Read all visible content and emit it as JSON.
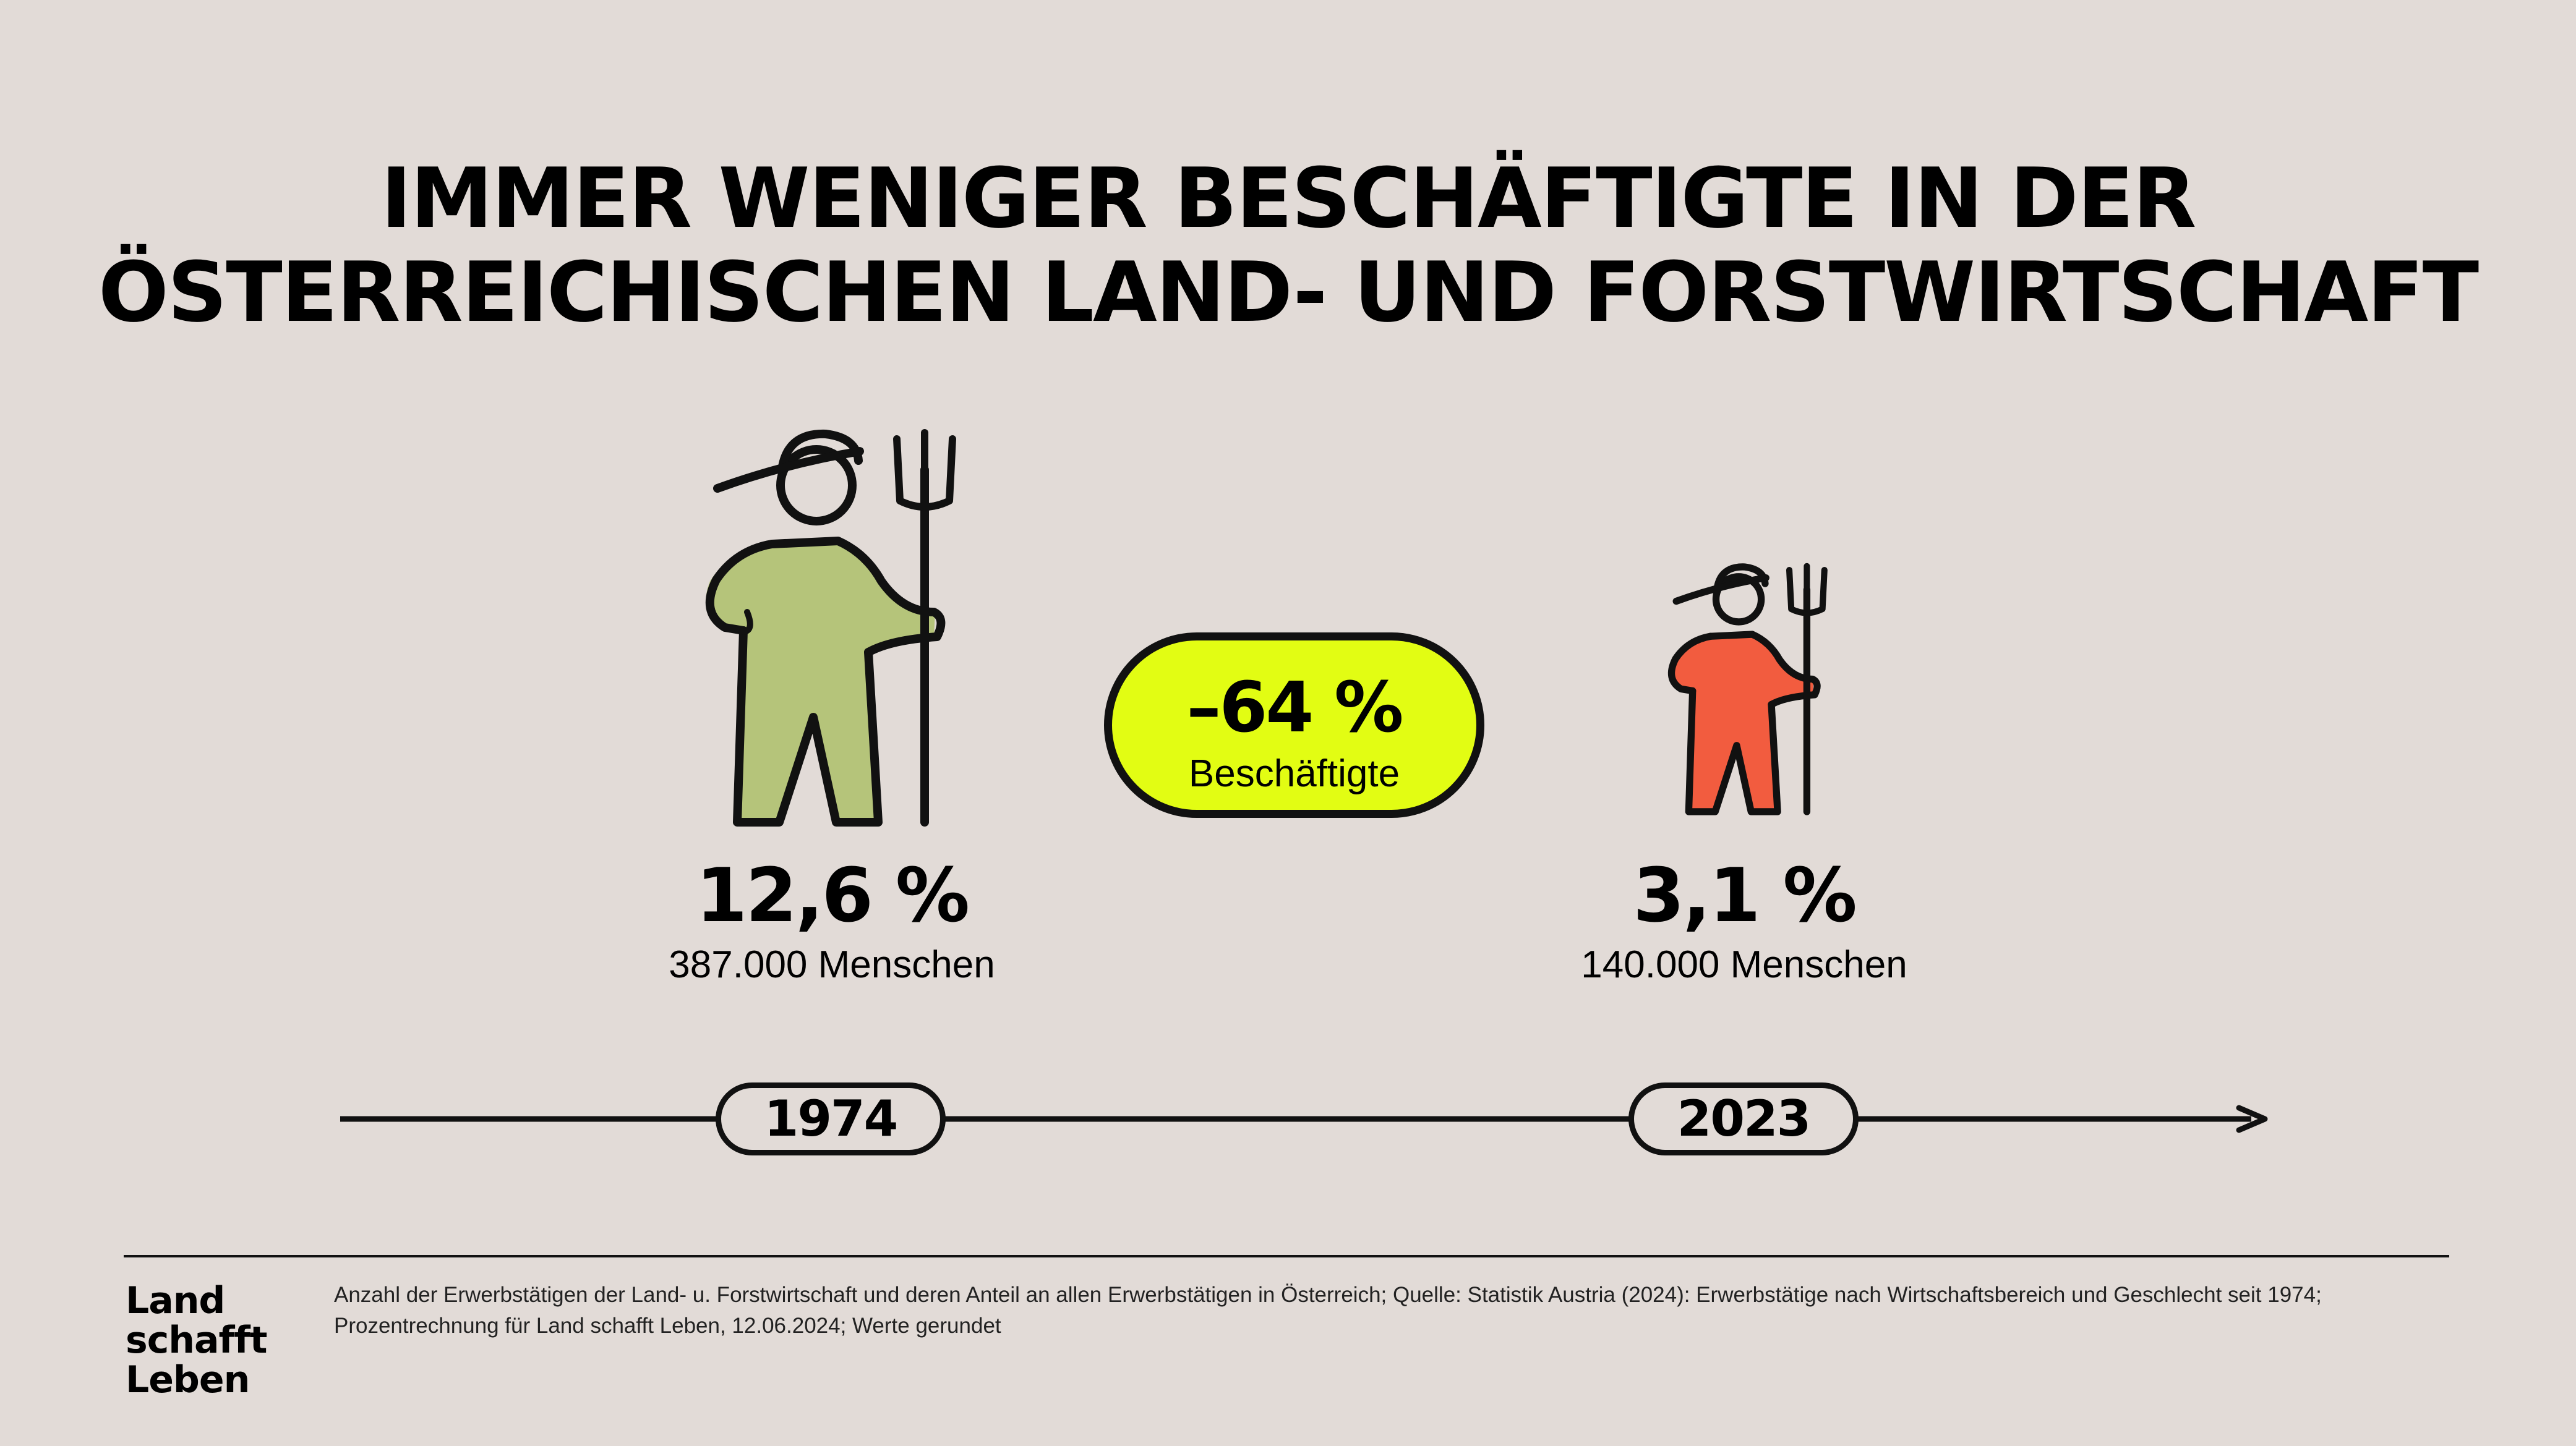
{
  "title": {
    "line1": "IMMER WENIGER BESCHÄFTIGTE IN DER",
    "line2": "ÖSTERREICHISCHEN LAND- UND FORSTWIRTSCHAFT"
  },
  "colors": {
    "background": "#e2dbd7",
    "figure_1974": "#b5c47a",
    "figure_2023": "#f25c3f",
    "badge": "#e2fd13",
    "outline": "#111111"
  },
  "icons": {
    "figure_1974": "farmer-with-pitchfork-icon",
    "figure_2023": "farmer-with-pitchfork-icon",
    "arrow": "arrow-right-icon"
  },
  "chart_data": {
    "type": "bar",
    "categories": [
      "1974",
      "2023"
    ],
    "series": [
      {
        "name": "Anteil",
        "values": [
          12.6,
          3.1
        ],
        "unit": "%"
      },
      {
        "name": "Menschen",
        "values": [
          387000,
          140000
        ]
      }
    ],
    "change_percent": -64
  },
  "points": [
    {
      "year": "1974",
      "share": "12,6 %",
      "people": "387.000 Menschen"
    },
    {
      "year": "2023",
      "share": "3,1 %",
      "people": "140.000 Menschen"
    }
  ],
  "badge": {
    "value": "–64 %",
    "label": "Beschäftigte"
  },
  "logo": {
    "line1": "Land",
    "line2": "schafft",
    "line3": "Leben"
  },
  "source": "Anzahl der Erwerbstätigen der Land- u. Forstwirtschaft und deren Anteil an allen Erwerbstätigen in Österreich; Quelle: Statistik Austria (2024): Erwerbstätige nach Wirtschaftsbereich und Geschlecht seit 1974; Prozentrechnung für Land schafft Leben, 12.06.2024; Werte gerundet"
}
